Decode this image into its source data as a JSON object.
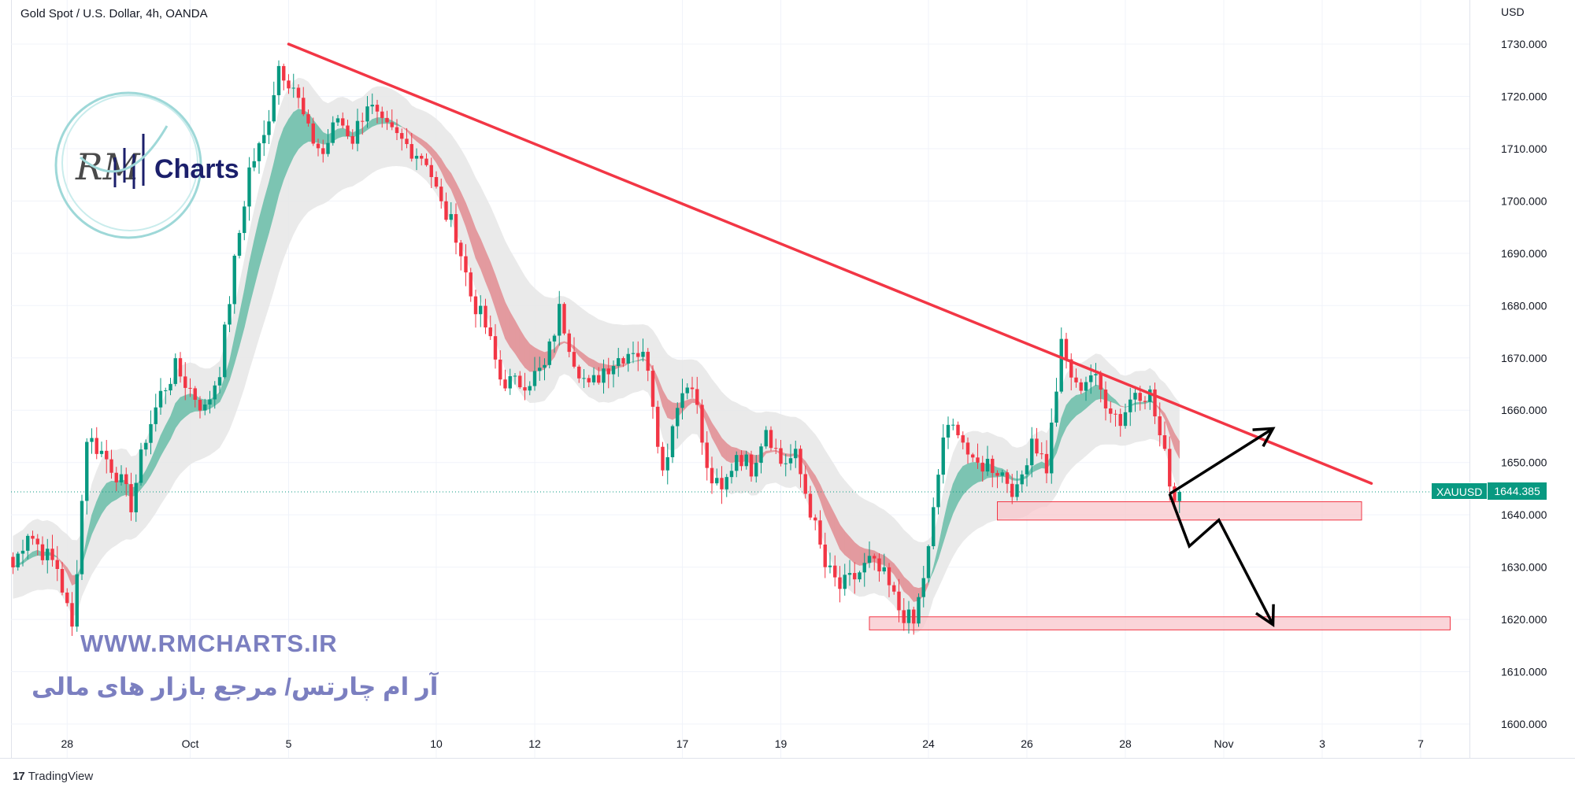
{
  "header": {
    "symbol_title": "Gold Spot / U.S. Dollar, 4h, OANDA",
    "currency": "USD"
  },
  "price_tag": {
    "symbol": "XAUUSD",
    "value": "1644.385"
  },
  "watermark": {
    "logo_text": "Charts",
    "logo_script": "RM",
    "url": "WWW.RMCHARTS.IR",
    "tagline_fa": "آر ام چارتس/ مرجع بازار های مالی"
  },
  "footer": {
    "brand": "TradingView",
    "logo": "17"
  },
  "colors": {
    "up": "#089981",
    "down": "#f23645",
    "trendline": "#f23645",
    "zone_fill": "#f8c7cc",
    "zone_border": "#f23645",
    "ribbon_bull": "#7cc4b2",
    "ribbon_bear": "#e39a9f",
    "cloud": "#e6e6e6",
    "arrows": "#000000",
    "last_price_line": "#089981",
    "text": "#131722",
    "logo_ring": "#9ed8d8",
    "logo_chart": "#1b1f6b"
  },
  "chart_data": {
    "type": "candlestick",
    "title": "Gold Spot / U.S. Dollar, 4h, OANDA",
    "ylabel": "USD",
    "ylim": [
      1595,
      1733
    ],
    "y_ticks": [
      "1730.000",
      "1720.000",
      "1710.000",
      "1700.000",
      "1690.000",
      "1680.000",
      "1670.000",
      "1660.000",
      "1650.000",
      "1640.000",
      "1630.000",
      "1620.000",
      "1610.000",
      "1600.000"
    ],
    "x_tick_labels": [
      {
        "label": "28",
        "bar": 11
      },
      {
        "label": "Oct",
        "bar": 36
      },
      {
        "label": "5",
        "bar": 56
      },
      {
        "label": "10",
        "bar": 86
      },
      {
        "label": "12",
        "bar": 106
      },
      {
        "label": "17",
        "bar": 136
      },
      {
        "label": "19",
        "bar": 156
      },
      {
        "label": "24",
        "bar": 186
      },
      {
        "label": "26",
        "bar": 206
      },
      {
        "label": "28",
        "bar": 226
      },
      {
        "label": "Nov",
        "bar": 246
      },
      {
        "label": "3",
        "bar": 266
      },
      {
        "label": "7",
        "bar": 286
      }
    ],
    "last_price": 1644.385,
    "anchors": [
      [
        0,
        1630
      ],
      [
        3,
        1637
      ],
      [
        6,
        1633
      ],
      [
        9,
        1630
      ],
      [
        12,
        1618
      ],
      [
        15,
        1655
      ],
      [
        18,
        1652
      ],
      [
        21,
        1648
      ],
      [
        24,
        1642
      ],
      [
        27,
        1655
      ],
      [
        30,
        1663
      ],
      [
        33,
        1668
      ],
      [
        36,
        1664
      ],
      [
        39,
        1660
      ],
      [
        42,
        1668
      ],
      [
        45,
        1688
      ],
      [
        48,
        1706
      ],
      [
        51,
        1712
      ],
      [
        54,
        1726
      ],
      [
        57,
        1722
      ],
      [
        60,
        1713
      ],
      [
        63,
        1709
      ],
      [
        66,
        1716
      ],
      [
        69,
        1712
      ],
      [
        72,
        1719
      ],
      [
        75,
        1714
      ],
      [
        78,
        1712
      ],
      [
        81,
        1710
      ],
      [
        84,
        1708
      ],
      [
        87,
        1699
      ],
      [
        90,
        1694
      ],
      [
        93,
        1682
      ],
      [
        96,
        1676
      ],
      [
        99,
        1666
      ],
      [
        102,
        1665
      ],
      [
        105,
        1666
      ],
      [
        108,
        1668
      ],
      [
        111,
        1679
      ],
      [
        114,
        1670
      ],
      [
        117,
        1664
      ],
      [
        120,
        1668
      ],
      [
        123,
        1670
      ],
      [
        126,
        1672
      ],
      [
        129,
        1669
      ],
      [
        132,
        1648
      ],
      [
        135,
        1662
      ],
      [
        138,
        1666
      ],
      [
        141,
        1648
      ],
      [
        144,
        1644
      ],
      [
        147,
        1652
      ],
      [
        150,
        1649
      ],
      [
        153,
        1657
      ],
      [
        156,
        1650
      ],
      [
        159,
        1651
      ],
      [
        162,
        1641
      ],
      [
        165,
        1630
      ],
      [
        168,
        1626
      ],
      [
        171,
        1628
      ],
      [
        174,
        1631
      ],
      [
        177,
        1628
      ],
      [
        180,
        1622
      ],
      [
        183,
        1619
      ],
      [
        186,
        1633
      ],
      [
        189,
        1655
      ],
      [
        192,
        1657
      ],
      [
        195,
        1649
      ],
      [
        198,
        1650
      ],
      [
        201,
        1648
      ],
      [
        204,
        1644
      ],
      [
        207,
        1655
      ],
      [
        210,
        1649
      ],
      [
        213,
        1672
      ],
      [
        216,
        1664
      ],
      [
        219,
        1667
      ],
      [
        222,
        1662
      ],
      [
        225,
        1658
      ],
      [
        228,
        1664
      ],
      [
        231,
        1663
      ],
      [
        234,
        1651
      ],
      [
        236,
        1643
      ],
      [
        237,
        1644.4
      ]
    ],
    "trendline": {
      "from": {
        "bar": 56,
        "price": 1730
      },
      "to": {
        "bar": 276,
        "price": 1646
      }
    },
    "zones": [
      {
        "name": "upper-support",
        "from_bar": 200,
        "to_bar": 274,
        "top": 1642.5,
        "bottom": 1639
      },
      {
        "name": "lower-support",
        "from_bar": 174,
        "to_bar": 292,
        "top": 1620.5,
        "bottom": 1618
      }
    ],
    "projection_arrows": [
      {
        "name": "bullish-path",
        "points": [
          {
            "bar": 235,
            "price": 1644
          },
          {
            "bar": 256,
            "price": 1656.5
          }
        ]
      },
      {
        "name": "bearish-path",
        "points": [
          {
            "bar": 235,
            "price": 1644
          },
          {
            "bar": 239,
            "price": 1634
          },
          {
            "bar": 245,
            "price": 1639
          },
          {
            "bar": 256,
            "price": 1619
          }
        ]
      }
    ]
  }
}
